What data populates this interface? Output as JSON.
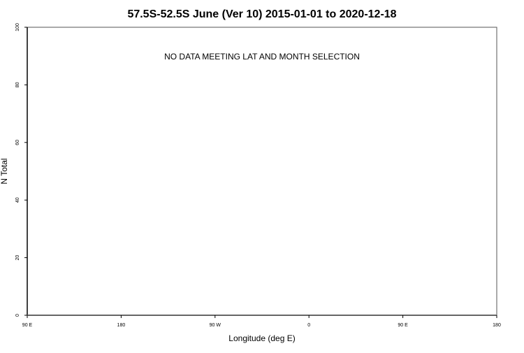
{
  "chart_data": {
    "type": "scatter",
    "title": "57.5S-52.5S June (Ver 10)   2015-01-01 to 2020-12-18",
    "xlabel": "Longitude (deg E)",
    "ylabel": "N Total",
    "annotation": "NO DATA MEETING LAT AND MONTH SELECTION",
    "ylim": [
      0,
      100
    ],
    "yticks": [
      "0",
      "20",
      "40",
      "60",
      "80",
      "100"
    ],
    "xticks": [
      "90 E",
      "180",
      "90 W",
      "0",
      "90 E",
      "180"
    ],
    "series": [],
    "grid": false
  }
}
